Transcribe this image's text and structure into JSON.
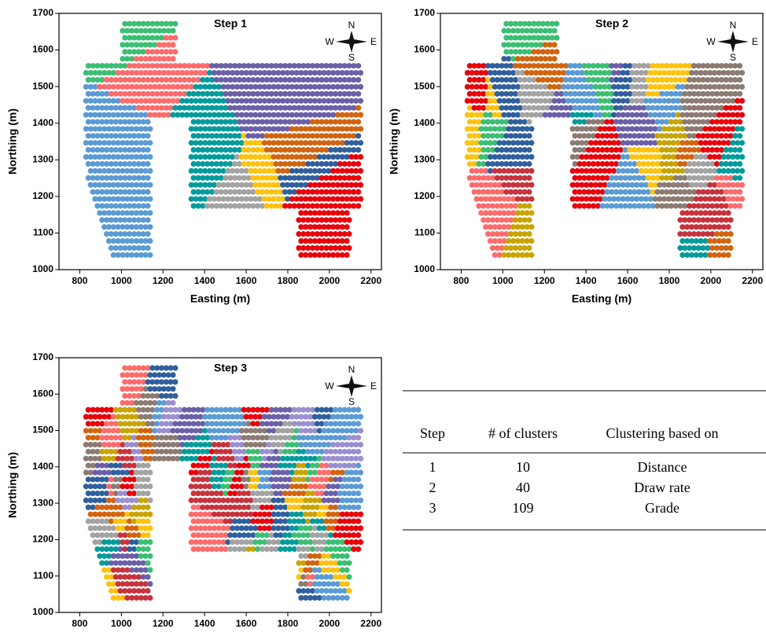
{
  "chart_data": [
    {
      "type": "cluster-map",
      "title": "Step 1",
      "xlabel": "Easting (m)",
      "ylabel": "Northing (m)",
      "xlim": [
        700,
        2250
      ],
      "ylim": [
        1000,
        1700
      ],
      "xticks": [
        800,
        1000,
        1200,
        1400,
        1600,
        1800,
        2000,
        2200
      ],
      "yticks": [
        1000,
        1100,
        1200,
        1300,
        1400,
        1500,
        1600,
        1700
      ],
      "compass": {
        "n": "N",
        "e": "E",
        "s": "S",
        "w": "W"
      },
      "colors": [
        "#ffc20e",
        "#6a5fa8",
        "#3bbf73",
        "#2f5f9e",
        "#e8000b",
        "#a3a3a3",
        "#ff6b6b",
        "#5b9bd5",
        "#d2640f",
        "#009b9b"
      ]
    },
    {
      "type": "cluster-map",
      "title": "Step 2",
      "xlabel": "Easting (m)",
      "ylabel": "Northing (m)",
      "xlim": [
        700,
        2250
      ],
      "ylim": [
        1000,
        1700
      ],
      "xticks": [
        800,
        1000,
        1200,
        1400,
        1600,
        1800,
        2000,
        2200
      ],
      "yticks": [
        1000,
        1100,
        1200,
        1300,
        1400,
        1500,
        1600,
        1700
      ],
      "compass": {
        "n": "N",
        "e": "E",
        "s": "S",
        "w": "W"
      },
      "colors": [
        "#ffc20e",
        "#6a5fa8",
        "#3bbf73",
        "#2f5f9e",
        "#e8000b",
        "#a3a3a3",
        "#ff6b6b",
        "#5b9bd5",
        "#d2640f",
        "#009b9b",
        "#c8a400",
        "#8c7b72",
        "#c8323c"
      ]
    },
    {
      "type": "cluster-map",
      "title": "Step 3",
      "xlabel": "Easting (m)",
      "ylabel": "Northing (m)",
      "xlim": [
        700,
        2250
      ],
      "ylim": [
        1000,
        1700
      ],
      "xticks": [
        800,
        1000,
        1200,
        1400,
        1600,
        1800,
        2000,
        2200
      ],
      "yticks": [
        1000,
        1100,
        1200,
        1300,
        1400,
        1500,
        1600,
        1700
      ],
      "compass": {
        "n": "N",
        "e": "E",
        "s": "S",
        "w": "W"
      },
      "colors": [
        "#ffc20e",
        "#6a5fa8",
        "#3bbf73",
        "#2f5f9e",
        "#e8000b",
        "#a3a3a3",
        "#ff6b6b",
        "#5b9bd5",
        "#d2640f",
        "#009b9b",
        "#c8a400",
        "#8c7b72",
        "#c8323c",
        "#9a8fd0"
      ]
    }
  ],
  "table": {
    "columns": [
      "Step",
      "# of clusters",
      "Clustering based on"
    ],
    "rows": [
      [
        1,
        10,
        "Distance"
      ],
      [
        2,
        40,
        "Draw rate"
      ],
      [
        3,
        109,
        "Grade"
      ]
    ]
  }
}
